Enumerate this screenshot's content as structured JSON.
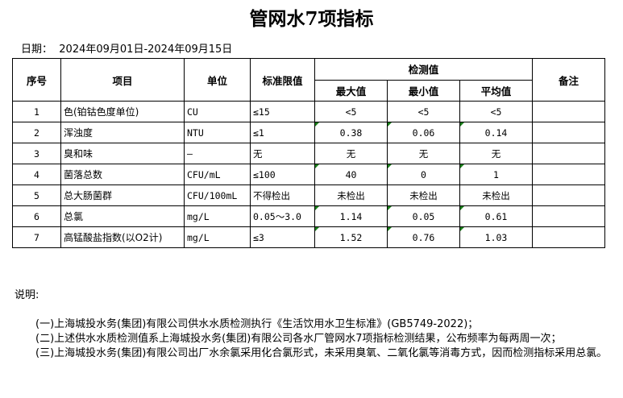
{
  "title": "管网水7项指标",
  "date_label": "日期：",
  "date_range": "2024年09月01日-2024年09月15日",
  "headers": {
    "seq": "序号",
    "item": "项目",
    "unit": "单位",
    "limit": "标准限值",
    "measured": "检测值",
    "max": "最大值",
    "min": "最小值",
    "avg": "平均值",
    "remark": "备注"
  },
  "marker_color": "#1a7f1a",
  "rows": [
    {
      "seq": "1",
      "item": "色(铂钴色度单位)",
      "unit": "CU",
      "limit": "≤15",
      "max": "<5",
      "min": "<5",
      "avg": "<5",
      "marked": false
    },
    {
      "seq": "2",
      "item": "浑浊度",
      "unit": "NTU",
      "limit": "≤1",
      "max": "0.38",
      "min": "0.06",
      "avg": "0.14",
      "marked": true
    },
    {
      "seq": "3",
      "item": "臭和味",
      "unit": "—",
      "limit": "无",
      "max": "无",
      "min": "无",
      "avg": "无",
      "marked": false
    },
    {
      "seq": "4",
      "item": "菌落总数",
      "unit": "CFU/mL",
      "limit": "≤100",
      "max": "40",
      "min": "0",
      "avg": "1",
      "marked": true
    },
    {
      "seq": "5",
      "item": "总大肠菌群",
      "unit": "CFU/100mL",
      "limit": "不得检出",
      "max": "未检出",
      "min": "未检出",
      "avg": "未检出",
      "marked": false
    },
    {
      "seq": "6",
      "item": "总氯",
      "unit": "mg/L",
      "limit": "0.05～3.0",
      "max": "1.14",
      "min": "0.05",
      "avg": "0.61",
      "marked": true
    },
    {
      "seq": "7",
      "item": "高锰酸盐指数(以O2计)",
      "unit": "mg/L",
      "limit": "≤3",
      "max": "1.52",
      "min": "0.76",
      "avg": "1.03",
      "marked": true
    }
  ],
  "notes": {
    "heading": "说明:",
    "items": [
      "　　(一)上海城投水务(集团)有限公司供水水质检测执行《生活饮用水卫生标准》(GB5749-2022)；",
      "　　(二)上述供水水质检测值系上海城投水务(集团)有限公司各水厂管网水7项指标检测结果，公布频率为每两周一次；",
      "　　(三)上海城投水务(集团)有限公司出厂水余氯采用化合氯形式，未采用臭氧、二氧化氯等消毒方式，因而检测指标采用总氯。"
    ]
  }
}
